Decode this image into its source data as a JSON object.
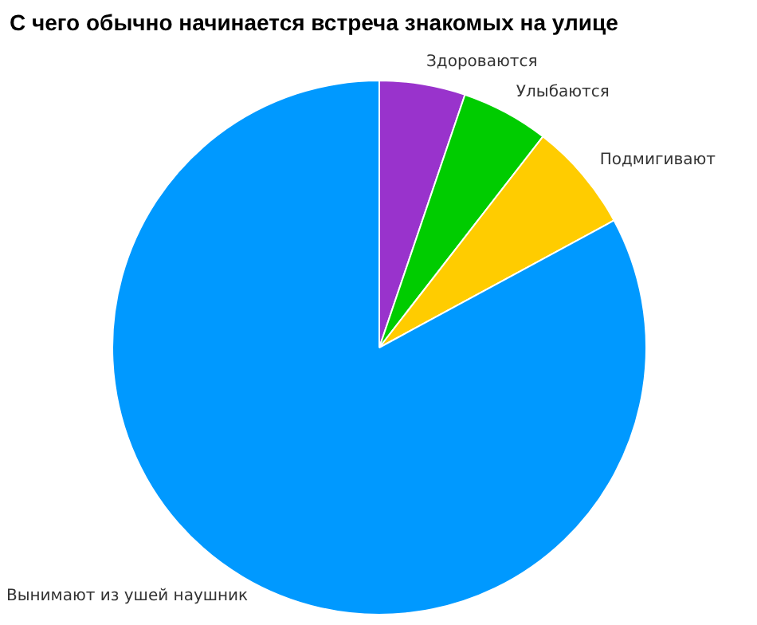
{
  "chart_data": {
    "type": "pie",
    "title": "С чего обычно начинается встреча знакомых на улице",
    "categories": [
      "Здороваются",
      "Улыбаются",
      "Подмигивают",
      "Вынимают из ушей наушник"
    ],
    "values": [
      5.2,
      5.3,
      6.6,
      82.9
    ],
    "colors": [
      "#9933cc",
      "#00cc00",
      "#ffcc00",
      "#0099ff"
    ],
    "legend": false
  }
}
